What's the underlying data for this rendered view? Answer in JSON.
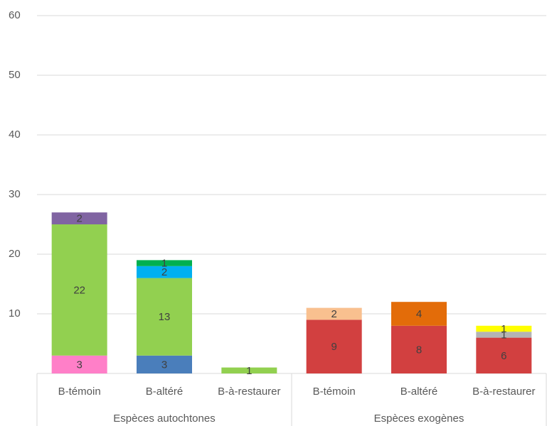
{
  "chart_data": {
    "type": "stacked_bar",
    "categories": [
      "B-témoin",
      "B-altéré",
      "B-à-restaurer",
      "B-témoin",
      "B-altéré",
      "B-à-restaurer"
    ],
    "groups": [
      "Espèces autochtones",
      "Espèces exogènes"
    ],
    "series": [
      {
        "color": "#ff7fc8",
        "values": [
          3,
          null,
          null,
          null,
          null,
          null
        ]
      },
      {
        "color": "#4a7ebb",
        "values": [
          null,
          3,
          null,
          null,
          null,
          null
        ]
      },
      {
        "color": "#d24040",
        "values": [
          null,
          null,
          null,
          9,
          8,
          6
        ]
      },
      {
        "color": "#92d050",
        "values": [
          22,
          13,
          1,
          null,
          null,
          null
        ]
      },
      {
        "color": "#b4b4b4",
        "values": [
          null,
          null,
          null,
          null,
          null,
          1
        ]
      },
      {
        "color": "#00b0f0",
        "values": [
          null,
          2,
          null,
          null,
          null,
          null
        ]
      },
      {
        "color": "#8064a2",
        "values": [
          2,
          null,
          null,
          null,
          null,
          null
        ]
      },
      {
        "color": "#f9c08f",
        "values": [
          null,
          null,
          null,
          2,
          null,
          null
        ]
      },
      {
        "color": "#e36c09",
        "values": [
          null,
          null,
          null,
          null,
          4,
          null
        ]
      },
      {
        "color": "#ffff00",
        "values": [
          null,
          null,
          null,
          null,
          null,
          1
        ]
      },
      {
        "color": "#00b050",
        "values": [
          null,
          1,
          null,
          null,
          null,
          null
        ]
      }
    ],
    "ylim": [
      0,
      60
    ],
    "yticks": [
      10,
      20,
      30,
      40,
      50,
      60
    ],
    "grid": true
  }
}
